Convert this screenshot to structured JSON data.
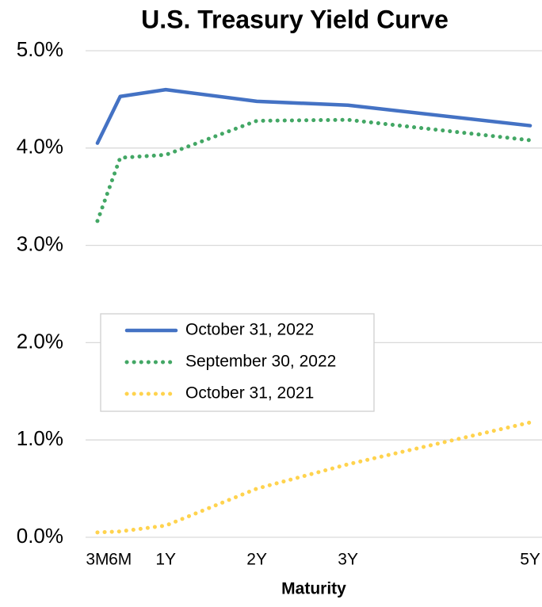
{
  "chart_data": {
    "type": "line",
    "title": "U.S. Treasury Yield Curve",
    "xlabel": "Maturity",
    "x": [
      0.25,
      0.5,
      1,
      2,
      3,
      5
    ],
    "xlim": [
      0.12,
      5.13
    ],
    "xticks": [
      {
        "value": 0.25,
        "label": "3M"
      },
      {
        "value": 0.5,
        "label": "6M"
      },
      {
        "value": 1,
        "label": "1Y"
      },
      {
        "value": 2,
        "label": "2Y"
      },
      {
        "value": 3,
        "label": "3Y"
      },
      {
        "value": 5,
        "label": "5Y"
      }
    ],
    "ylim": [
      0,
      5
    ],
    "yticks": [
      {
        "value": 0,
        "label": "0.0%"
      },
      {
        "value": 1,
        "label": "1.0%"
      },
      {
        "value": 2,
        "label": "2.0%"
      },
      {
        "value": 3,
        "label": "3.0%"
      },
      {
        "value": 4,
        "label": "4.0%"
      },
      {
        "value": 5,
        "label": "5.0%"
      }
    ],
    "grid": true,
    "series": [
      {
        "name": "October 31, 2022",
        "color": "#4472c4",
        "dash": "solid",
        "values": [
          4.05,
          4.53,
          4.6,
          4.48,
          4.44,
          4.23
        ]
      },
      {
        "name": "September 30, 2022",
        "color": "#43a765",
        "dash": "dotted",
        "values": [
          3.25,
          3.9,
          3.93,
          4.28,
          4.29,
          4.08
        ]
      },
      {
        "name": "October 31, 2021",
        "color": "#ffd34e",
        "dash": "dotted",
        "values": [
          0.05,
          0.06,
          0.12,
          0.5,
          0.75,
          1.18
        ]
      }
    ]
  }
}
